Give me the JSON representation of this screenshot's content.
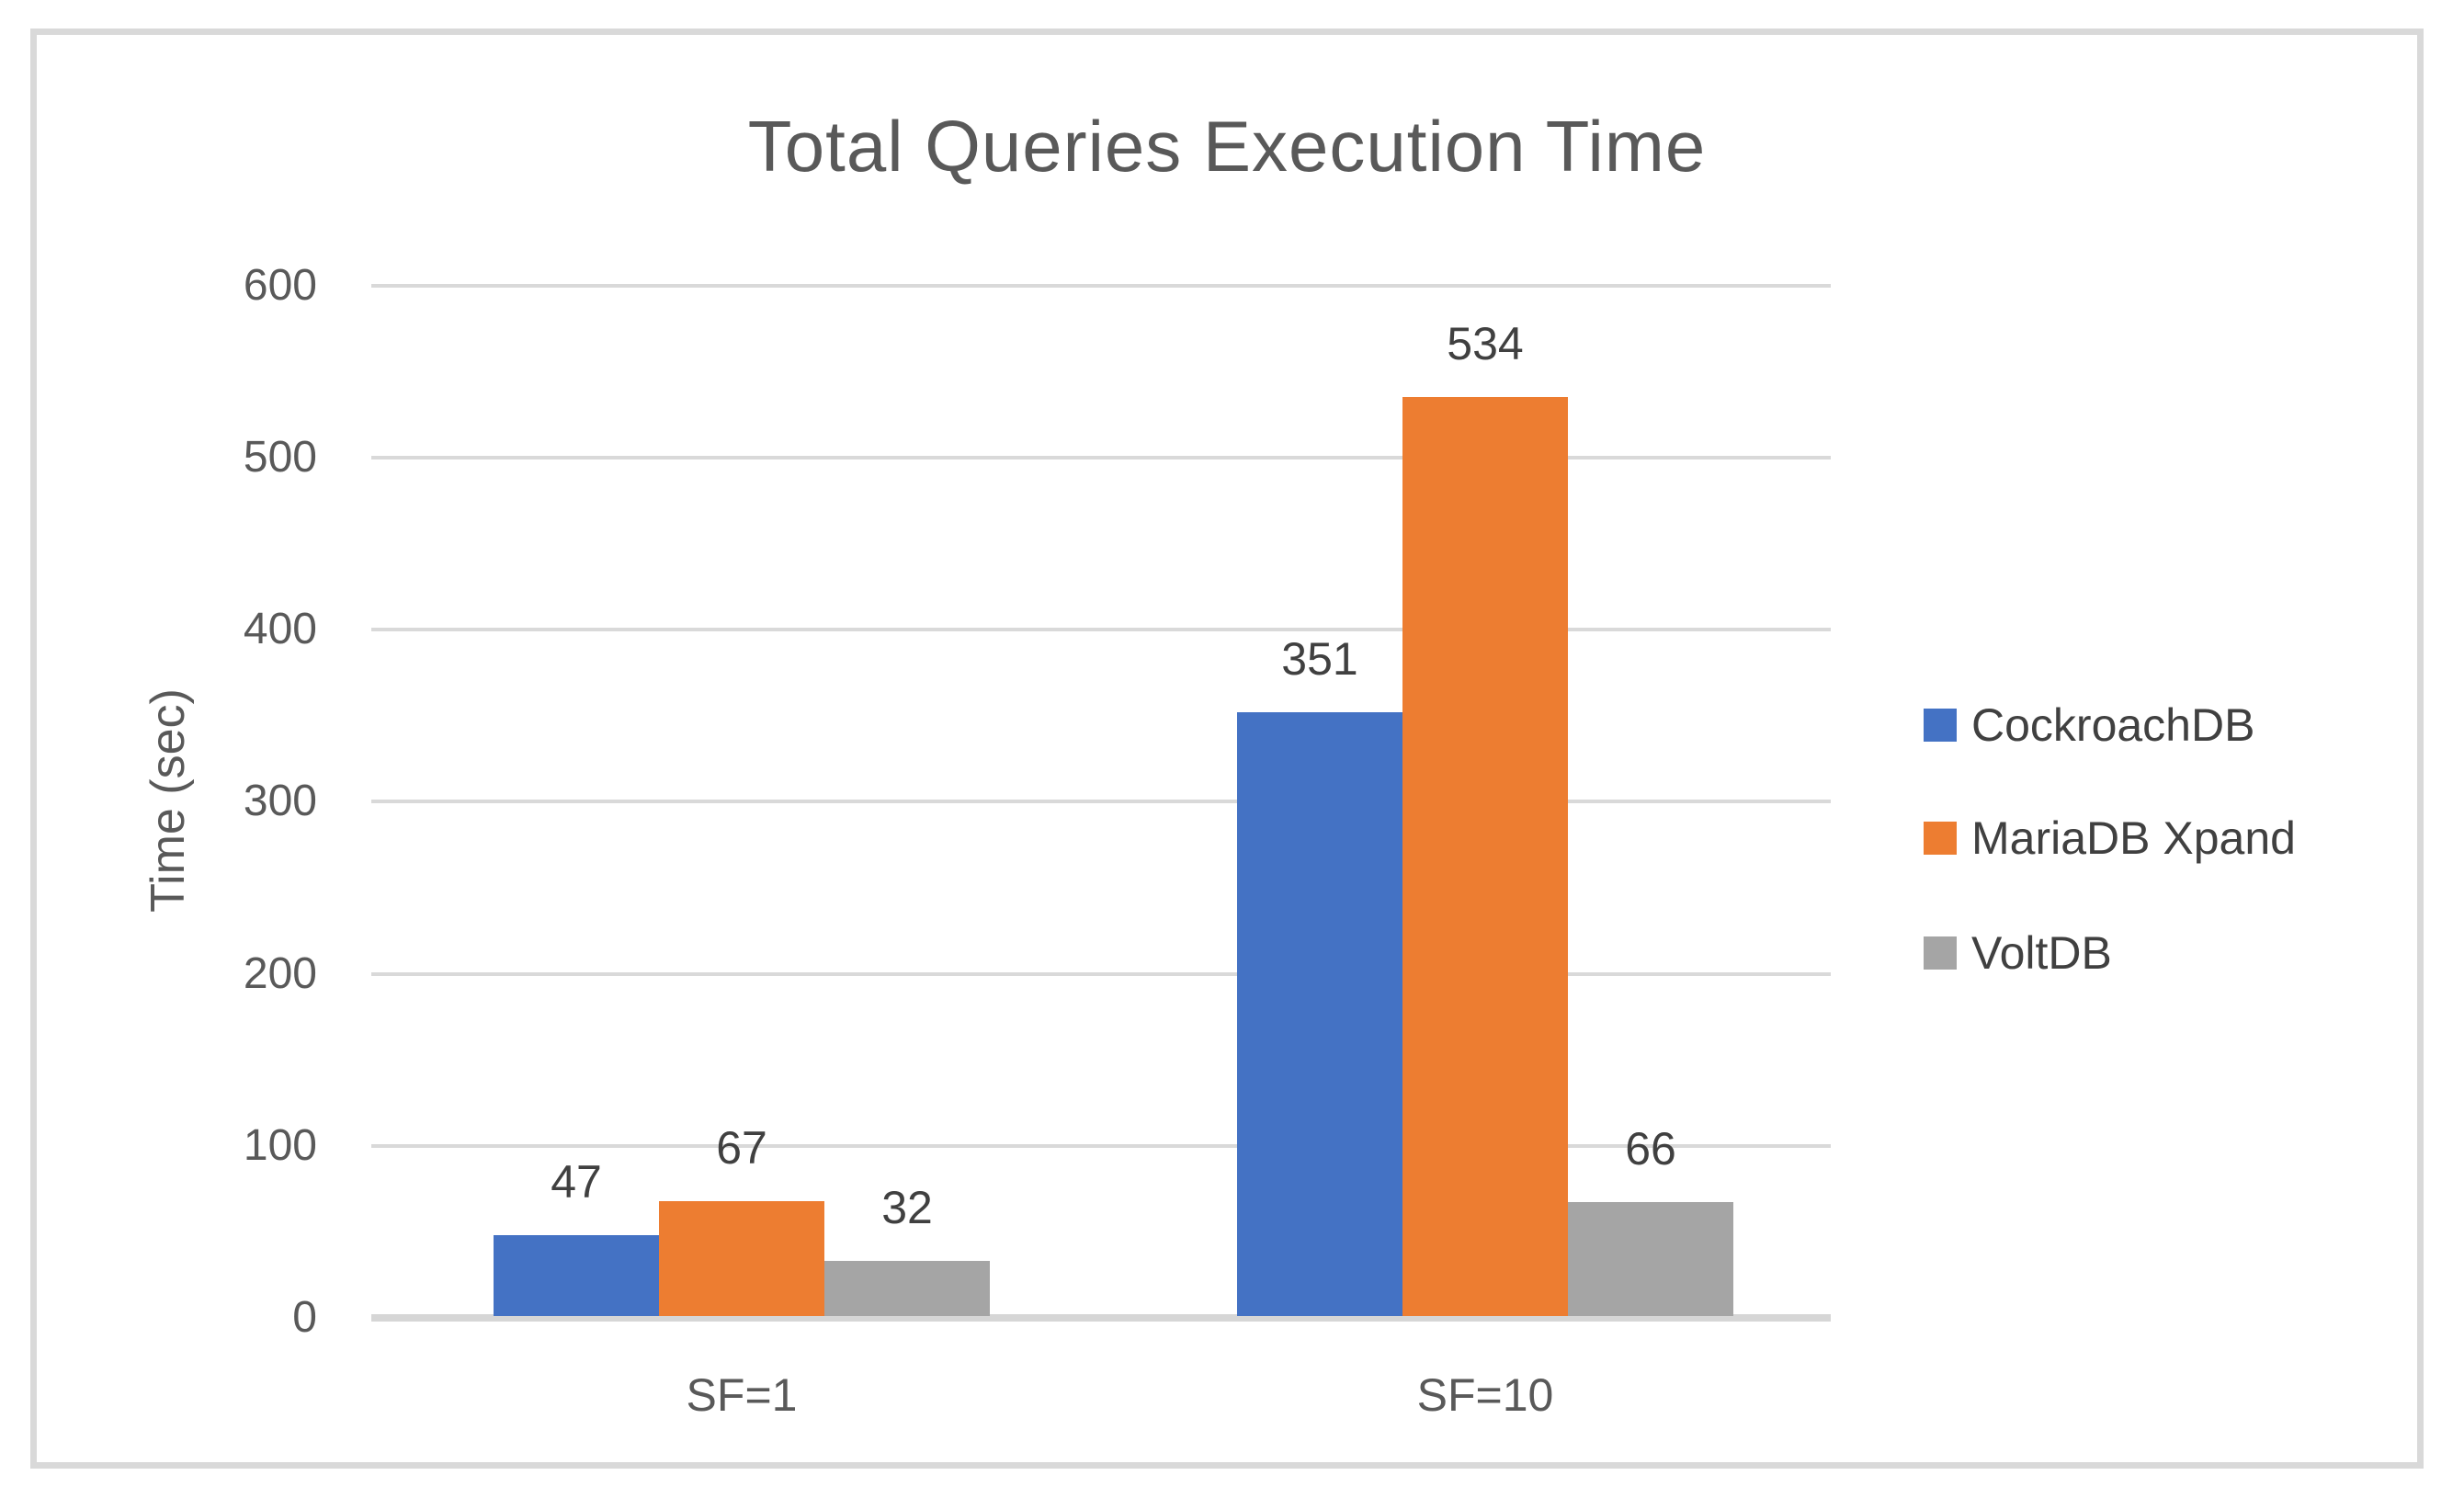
{
  "chart_data": {
    "type": "bar",
    "title": "Total Queries Execution Time",
    "xlabel": "",
    "ylabel": "Time (sec)",
    "categories": [
      "SF=1",
      "SF=10"
    ],
    "series": [
      {
        "name": "CockroachDB",
        "color": "#4472C4",
        "values": [
          47,
          351
        ]
      },
      {
        "name": "MariaDB Xpand",
        "color": "#ED7D31",
        "values": [
          67,
          534
        ]
      },
      {
        "name": "VoltDB",
        "color": "#A5A5A5",
        "values": [
          32,
          66
        ]
      }
    ],
    "ylim": [
      0,
      600
    ],
    "yticks": [
      0,
      100,
      200,
      300,
      400,
      500,
      600
    ],
    "grid": true,
    "data_labels": true,
    "legend_position": "right"
  },
  "colors": {
    "title_text": "#595959",
    "axis_text": "#595959",
    "data_label_text": "#404040",
    "legend_text": "#404040",
    "gridline": "#D9D9D9",
    "frame_border": "#D9D9D9",
    "background": "#FFFFFF"
  }
}
